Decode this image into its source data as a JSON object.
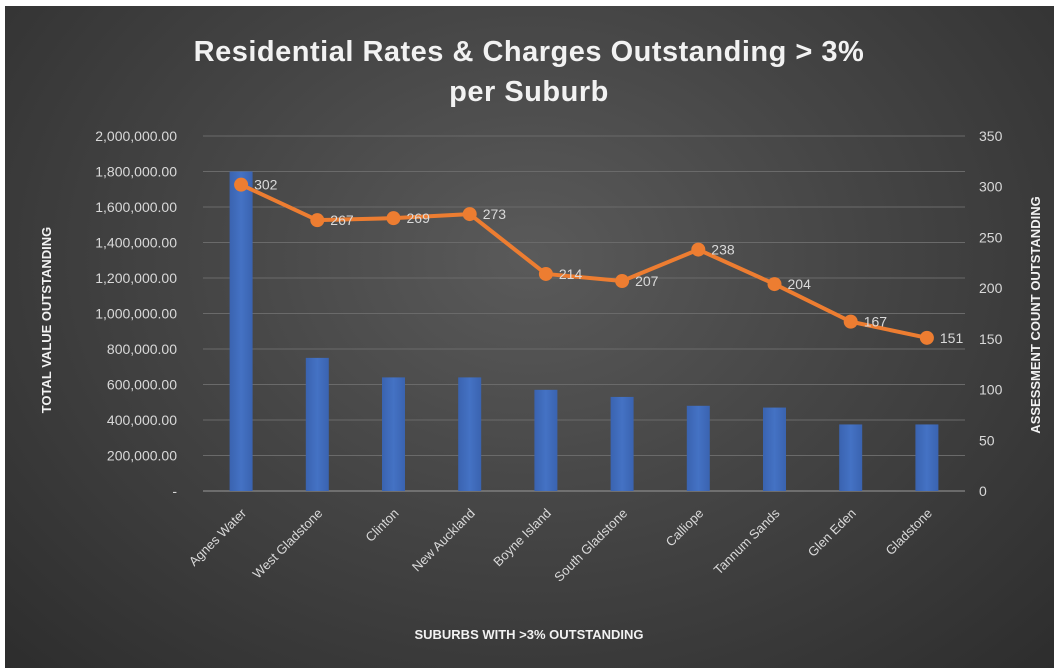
{
  "chart_data": {
    "type": "bar+line",
    "title": [
      "Residential Rates & Charges Outstanding > 3%",
      "per Suburb"
    ],
    "xlabel": "SUBURBS WITH >3% OUTSTANDING",
    "ylabel_left": "TOTAL VALUE OUTSTANDING",
    "ylabel_right": "ASSESSMENT COUNT OUTSTANDING",
    "categories": [
      "Agnes Water",
      "West Gladstone",
      "Clinton",
      "New Auckland",
      "Boyne Island",
      "South Gladstone",
      "Calliope",
      "Tannum Sands",
      "Glen Eden",
      "Gladstone"
    ],
    "series": [
      {
        "type": "bar",
        "axis": "left",
        "color": "#4472c4",
        "values": [
          1800000,
          750000,
          640000,
          640000,
          570000,
          530000,
          480000,
          470000,
          375000,
          375000
        ]
      },
      {
        "type": "line",
        "axis": "right",
        "color": "#ed7d31",
        "values": [
          302,
          267,
          269,
          273,
          214,
          207,
          238,
          204,
          167,
          151
        ],
        "labels": [
          "302",
          "267",
          "269",
          "273",
          "214",
          "207",
          "238",
          "204",
          "167",
          "151"
        ]
      }
    ],
    "ylim_left": [
      0,
      2000000
    ],
    "ylim_right": [
      0,
      350
    ],
    "left_ticks": [
      "-",
      "200,000.00",
      "400,000.00",
      "600,000.00",
      "800,000.00",
      "1,000,000.00",
      "1,200,000.00",
      "1,400,000.00",
      "1,600,000.00",
      "1,800,000.00",
      "2,000,000.00"
    ],
    "right_ticks": [
      "0",
      "50",
      "100",
      "150",
      "200",
      "250",
      "300",
      "350"
    ],
    "grid": true,
    "legend": "none"
  }
}
